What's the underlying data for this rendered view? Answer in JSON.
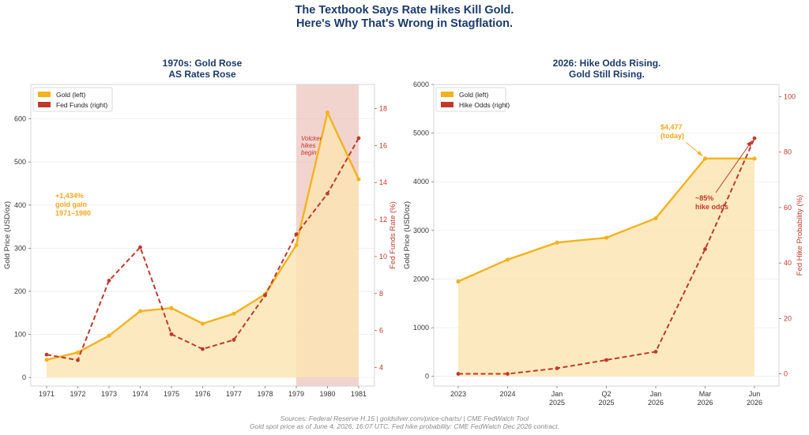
{
  "figure": {
    "title_line1": "The Textbook Says Rate Hikes Kill Gold.",
    "title_line2": "Here's Why That's Wrong in Stagflation.",
    "source_line1": "Sources: Federal Reserve H.15  |  goldsilver.com/price-charts/  |  CME FedWatch Tool",
    "source_line2": "Gold spot price as of June 4, 2026, 16:07 UTC. Fed hike probability: CME FedWatch Dec 2026 contract."
  },
  "colors": {
    "gold": "#f5b21e",
    "gold_fill": "#fbe3b0",
    "red": "#c0392b",
    "navy": "#1b3a6b",
    "shade": "#e8b0a8"
  },
  "chart_data": [
    {
      "type": "line",
      "title_line1": "1970s: Gold Rose",
      "title_line2": "AS Rates Rose",
      "x": [
        "1971",
        "1972",
        "1973",
        "1974",
        "1975",
        "1976",
        "1977",
        "1978",
        "1979",
        "1980",
        "1981"
      ],
      "series": [
        {
          "name": "Gold (left)",
          "axis": "left",
          "style": "solid-filled",
          "values": [
            41,
            58,
            97,
            154,
            161,
            125,
            148,
            193,
            307,
            615,
            460
          ]
        },
        {
          "name": "Fed Funds (right)",
          "axis": "right",
          "style": "dashed",
          "values": [
            4.7,
            4.4,
            8.7,
            10.5,
            5.8,
            5.0,
            5.5,
            7.9,
            11.2,
            13.4,
            16.4
          ]
        }
      ],
      "ylabel": "Gold Price (USD/oz)",
      "ylabel_right": "Fed Funds Rate (%)",
      "ylim": [
        -20,
        680
      ],
      "ylim_right": [
        3.0,
        19.3
      ],
      "yticks": [
        0,
        100,
        200,
        300,
        400,
        500,
        600
      ],
      "yticks_right": [
        4,
        6,
        8,
        10,
        12,
        14,
        16,
        18
      ],
      "shaded_span": {
        "from": "1979",
        "to": "1981",
        "label_lines": [
          "Volcker",
          "hikes",
          "begin"
        ]
      },
      "annotation_lines": [
        "+1,434%",
        "gold gain",
        "1971–1980"
      ],
      "legend_position": "top-left",
      "grid": "horizontal"
    },
    {
      "type": "line",
      "title_line1": "2026: Hike Odds Rising.",
      "title_line2": "Gold Still Rising.",
      "x": [
        "2023",
        "2024",
        "Jan 2025",
        "Q2 2025",
        "Jan 2026",
        "Mar 2026",
        "Jun 2026"
      ],
      "x_tick_lines": [
        [
          "2023"
        ],
        [
          "2024"
        ],
        [
          "Jan",
          "2025"
        ],
        [
          "Q2",
          "2025"
        ],
        [
          "Jan",
          "2026"
        ],
        [
          "Mar",
          "2026"
        ],
        [
          "Jun",
          "2026"
        ]
      ],
      "series": [
        {
          "name": "Gold (left)",
          "axis": "left",
          "style": "solid-filled",
          "values": [
            1950,
            2400,
            2750,
            2850,
            3250,
            4477,
            4477
          ]
        },
        {
          "name": "Hike Odds (right)",
          "axis": "right",
          "style": "dashed",
          "values": [
            0,
            0,
            2,
            5,
            8,
            45,
            85
          ]
        }
      ],
      "ylabel": "Gold Price (USD/oz)",
      "ylabel_right": "Fed Hike Probability (%)",
      "ylim": [
        -200,
        6000
      ],
      "ylim_right": [
        -4.4,
        104.4
      ],
      "yticks": [
        0,
        1000,
        2000,
        3000,
        4000,
        5000,
        6000
      ],
      "yticks_right": [
        0,
        20,
        40,
        60,
        80,
        100
      ],
      "annotation_gold_lines": [
        "$4,477",
        "(today)"
      ],
      "annotation_red_lines": [
        "~85%",
        "hike odds"
      ],
      "legend_position": "top-left",
      "grid": "horizontal"
    }
  ]
}
